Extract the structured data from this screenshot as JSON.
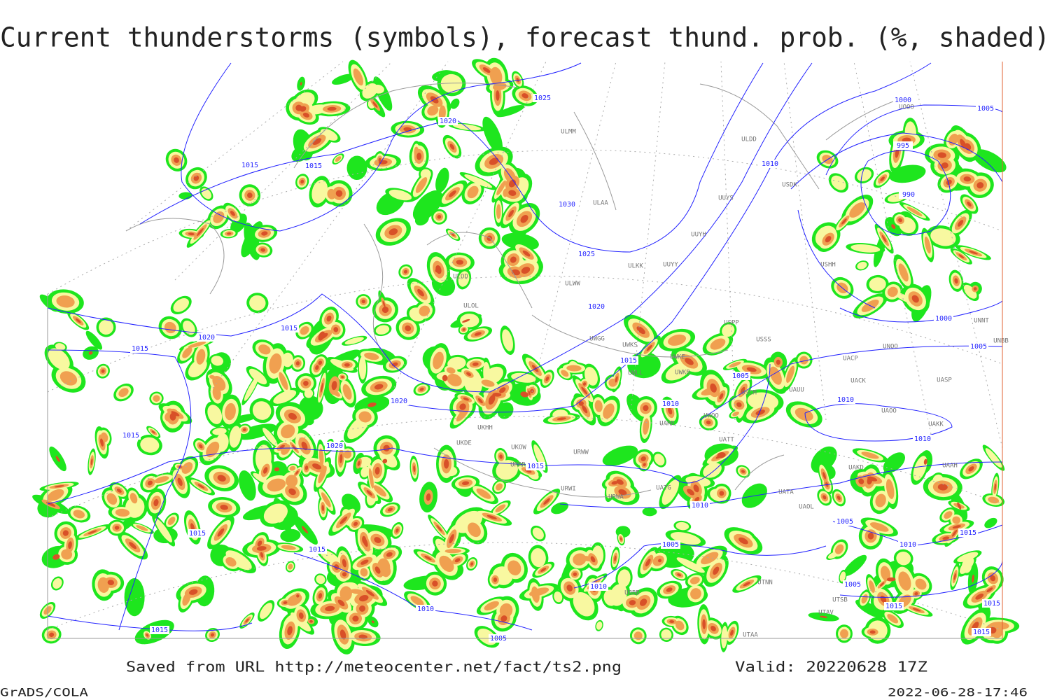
{
  "header": {
    "title": "Current thunderstorms (symbols), forecast thund. prob. (%, shaded)"
  },
  "map": {
    "isobar_labels": [
      "1025",
      "1020",
      "1015",
      "1015",
      "1030",
      "1025",
      "1020",
      "1015",
      "1020",
      "1015",
      "1015",
      "1010",
      "1000",
      "1005",
      "995",
      "990",
      "1000",
      "1005",
      "1005",
      "1010",
      "1020",
      "1010",
      "1010",
      "1020",
      "1015",
      "1015",
      "1010",
      "1005",
      "1005",
      "1015",
      "1015",
      "1010",
      "1015",
      "1010",
      "1010",
      "1005",
      "1015",
      "1015",
      "1015",
      "1015",
      "1005"
    ],
    "station_labels": [
      "ULMM",
      "ULAA",
      "ULDD",
      "USDK",
      "UUYS",
      "UUYH",
      "ULKK",
      "UUYY",
      "USHH",
      "ULWW",
      "UWGG",
      "UWKS",
      "UWKE",
      "UWKB",
      "UWLL",
      "USSS",
      "USPP",
      "UACK",
      "UASP",
      "UAUU",
      "USCM",
      "UAOO",
      "UAKK",
      "UWOO",
      "UARR",
      "ULOD",
      "ULOL",
      "UKHH",
      "UKDE",
      "UKOW",
      "URWW",
      "URRR",
      "URWI",
      "UATG",
      "URWA",
      "UATA",
      "UAOL",
      "UAKD",
      "UAAH",
      "UTNN",
      "UBBB",
      "UTSB",
      "UTAV",
      "UTAA",
      "UNNT",
      "UNBB",
      "UNOO",
      "UACP",
      "UATT",
      "UOOO"
    ]
  },
  "footer": {
    "source": "Saved from URL http://meteocenter.net/fact/ts2.png",
    "valid": "Valid: 20220628 17Z",
    "software": "GrADS/COLA",
    "timestamp": "2022-06-28-17:46"
  }
}
